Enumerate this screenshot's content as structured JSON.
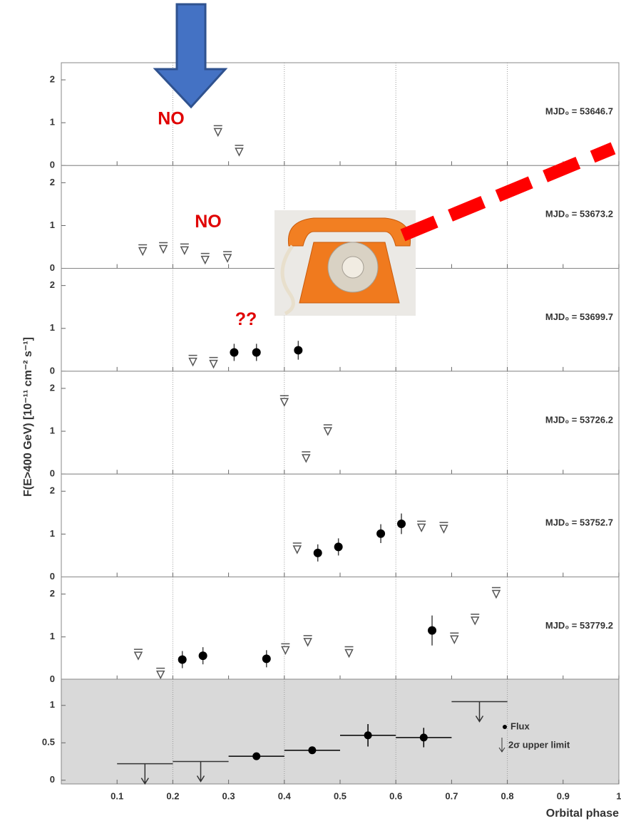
{
  "chart_data": [
    {
      "type": "scatter",
      "note": "NO",
      "annotation": "MJD₀ = 53646.7",
      "ylabel": "F(E>400 GeV) [10⁻¹¹ cm⁻² s⁻¹]",
      "ylim": [
        0,
        2.4
      ],
      "yticks": [
        0,
        1,
        2
      ],
      "upper_limits": {
        "x": [
          0.281,
          0.319
        ],
        "values": [
          0.78,
          0.32
        ]
      }
    },
    {
      "type": "scatter",
      "note": "NO",
      "annotation": "MJD₀ = 53673.2",
      "ylim": [
        0,
        2.4
      ],
      "yticks": [
        0,
        1,
        2
      ],
      "upper_limits": {
        "x": [
          0.146,
          0.183,
          0.221,
          0.258,
          0.298
        ],
        "values": [
          0.4,
          0.45,
          0.42,
          0.2,
          0.24
        ]
      }
    },
    {
      "type": "scatter",
      "note": "??",
      "annotation": "MJD₀ = 53699.7",
      "ylim": [
        0,
        2.4
      ],
      "yticks": [
        0,
        1,
        2
      ],
      "upper_limits": {
        "x": [
          0.236,
          0.273
        ],
        "values": [
          0.22,
          0.17
        ]
      },
      "flux": {
        "x": [
          0.31,
          0.35,
          0.425
        ],
        "values": [
          0.44,
          0.44,
          0.49
        ],
        "errors": [
          0.2,
          0.2,
          0.22
        ]
      }
    },
    {
      "type": "scatter",
      "annotation": "MJD₀ = 53726.2",
      "ylim": [
        0,
        2.4
      ],
      "yticks": [
        0,
        1,
        2
      ],
      "upper_limits": {
        "x": [
          0.4,
          0.439,
          0.478
        ],
        "values": [
          1.68,
          0.37,
          1.0
        ]
      }
    },
    {
      "type": "scatter",
      "annotation": "MJD₀ = 53752.7",
      "ylim": [
        0,
        2.4
      ],
      "yticks": [
        0,
        1,
        2
      ],
      "upper_limits": {
        "x": [
          0.423,
          0.646,
          0.686
        ],
        "values": [
          0.64,
          1.15,
          1.12
        ]
      },
      "flux": {
        "x": [
          0.46,
          0.497,
          0.573,
          0.61
        ],
        "values": [
          0.56,
          0.7,
          1.01,
          1.24
        ],
        "errors": [
          0.2,
          0.2,
          0.22,
          0.24
        ]
      }
    },
    {
      "type": "scatter",
      "annotation": "MJD₀ = 53779.2",
      "ylim": [
        0,
        2.4
      ],
      "yticks": [
        0,
        1,
        2
      ],
      "upper_limits": {
        "x": [
          0.138,
          0.178,
          0.402,
          0.442,
          0.516,
          0.705,
          0.742,
          0.78
        ],
        "values": [
          0.56,
          0.12,
          0.69,
          0.88,
          0.62,
          0.94,
          1.38,
          2.0
        ]
      },
      "flux": {
        "x": [
          0.217,
          0.254,
          0.368,
          0.665
        ],
        "values": [
          0.47,
          0.56,
          0.49,
          1.15
        ],
        "errors": [
          0.2,
          0.2,
          0.2,
          0.35
        ]
      }
    },
    {
      "type": "scatter",
      "xlabel": "Orbital phase",
      "xlim": [
        0,
        1
      ],
      "xticks": [
        0.1,
        0.2,
        0.3,
        0.4,
        0.5,
        0.6,
        0.7,
        0.8,
        0.9,
        1
      ],
      "ylim": [
        -0.05,
        1.35
      ],
      "yticks": [
        0,
        0.5,
        1
      ],
      "series": [
        {
          "name": "Flux",
          "color": "#000000",
          "x": [
            0.35,
            0.45,
            0.55,
            0.65
          ],
          "xerr": [
            0.05,
            0.05,
            0.05,
            0.05
          ],
          "values": [
            0.32,
            0.4,
            0.6,
            0.57
          ],
          "errors": [
            0.05,
            0.05,
            0.15,
            0.13
          ]
        },
        {
          "name": "2σ upper limit",
          "color": "#333333",
          "x": [
            0.15,
            0.25,
            0.75
          ],
          "xerr": [
            0.05,
            0.05,
            0.05
          ],
          "values": [
            0.22,
            0.25,
            1.05
          ]
        }
      ]
    }
  ]
}
